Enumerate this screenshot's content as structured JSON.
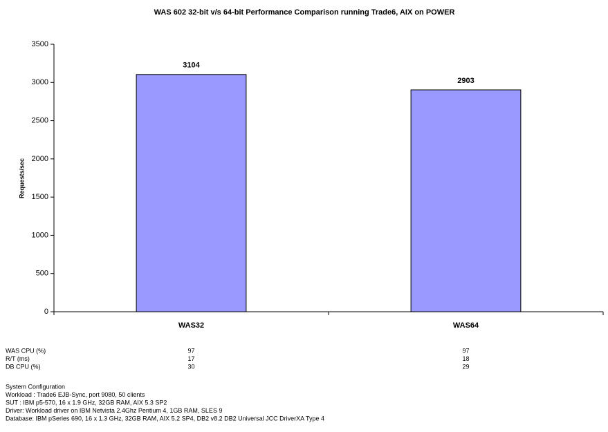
{
  "chart_data": {
    "type": "bar",
    "title": "WAS 602 32-bit v/s 64-bit Performance Comparison running Trade6, AIX on POWER",
    "y_label": "Requests/sec",
    "categories": [
      "WAS32",
      "WAS64"
    ],
    "values": [
      3104,
      2903
    ],
    "color": "#9999ff",
    "ylim": [
      0,
      3500
    ],
    "yticks": [
      0,
      500,
      1000,
      1500,
      2000,
      2500,
      3000,
      3500
    ],
    "grid": false,
    "table": {
      "rows": [
        {
          "label": "WAS CPU (%)",
          "values": [
            97,
            97
          ]
        },
        {
          "label": "R/T (ms)",
          "values": [
            17,
            18
          ]
        },
        {
          "label": "DB CPU (%)",
          "values": [
            30,
            29
          ]
        }
      ]
    },
    "notes": [
      "System Configuration",
      "Workload : Trade6 EJB-Sync, port 9080, 50 clients",
      "SUT : IBM p5-570, 16 x 1.9 GHz, 32GB RAM, AIX 5.3 SP2",
      "Driver: Workload driver on IBM Netvista 2.4Ghz Pentium 4, 1GB RAM, SLES 9",
      "Database: IBM pSeries 690, 16 x 1.3 GHz, 32GB RAM, AIX 5.2 SP4, DB2 v8.2 DB2 Universal JCC DriverXA Type 4"
    ]
  }
}
